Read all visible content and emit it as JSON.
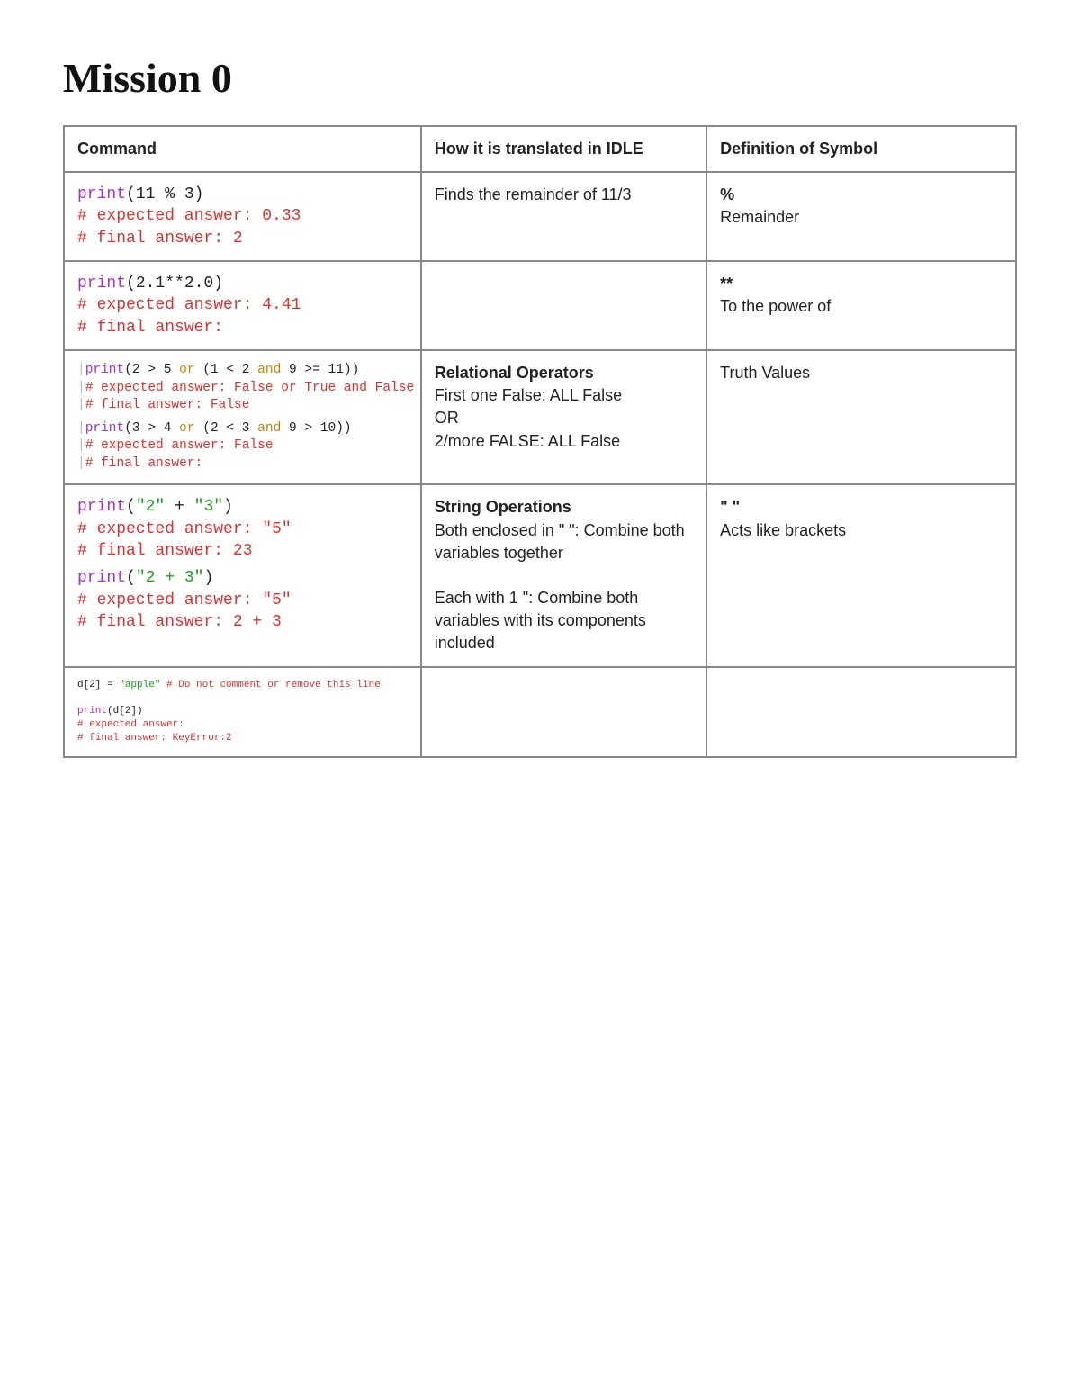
{
  "title": "Mission 0",
  "headers": {
    "c1": "Command",
    "c2": "How it is translated in IDLE",
    "c3": "Definition of Symbol"
  },
  "rows": {
    "r1": {
      "code": {
        "l1a": "print",
        "l1b": "(11 % 3)",
        "l2": "# expected answer: 0.33",
        "l3": "# final answer: 2"
      },
      "idle": "Finds the remainder of 11/3",
      "def_sym": "%",
      "def_txt": "Remainder"
    },
    "r2": {
      "code": {
        "l1a": "print",
        "l1b": "(2.1**2.0)",
        "l2": "# expected answer: 4.41",
        "l3": "# final answer:"
      },
      "idle": "",
      "def_sym": "**",
      "def_txt": "To the power of"
    },
    "r3": {
      "codeA": {
        "l1a": "print",
        "l1b": "(2 > 5 ",
        "l1or": "or",
        "l1c": " (1 < 2 ",
        "l1and": "and",
        "l1d": " 9 >= 11))",
        "l2": "# expected answer: False or True and False",
        "l3": "# final answer: False"
      },
      "codeB": {
        "l1a": "print",
        "l1b": "(3 > 4 ",
        "l1or": "or",
        "l1c": " (2 < 3 ",
        "l1and": "and",
        "l1d": " 9 > 10))",
        "l2": "# expected answer: False",
        "l3": "# final answer:"
      },
      "idle_title": "Relational Operators",
      "idle_l1": "First one False: ALL False",
      "idle_l2": "OR",
      "idle_l3": "2/more FALSE: ALL False",
      "def_txt": "Truth Values"
    },
    "r4": {
      "codeA": {
        "l1a": "print",
        "l1p1": "(",
        "l1s1": "\"2\"",
        "l1plus": " + ",
        "l1s2": "\"3\"",
        "l1p2": ")",
        "l2": "# expected answer: \"5\"",
        "l3": "# final answer: 23"
      },
      "codeB": {
        "l1a": "print",
        "l1p1": "(",
        "l1s": "\"2 + 3\"",
        "l1p2": ")",
        "l2": "# expected answer: \"5\"",
        "l3": "# final answer: 2 + 3"
      },
      "idle_title": "String Operations",
      "idle_l1": "Both enclosed in \" \": Combine both variables together",
      "idle_l2": "Each with 1 \": Combine both variables with its components included",
      "def_sym": "\" \"",
      "def_txt": "Acts like brackets"
    },
    "r5": {
      "code": {
        "l1a": "d[2] = ",
        "l1s": "\"apple\"",
        "l1c": " # Do not comment or remove this line",
        "l2a": "print",
        "l2b": "(d[2])",
        "l3": "# expected answer:",
        "l4": "# final answer: KeyError:2"
      }
    }
  }
}
